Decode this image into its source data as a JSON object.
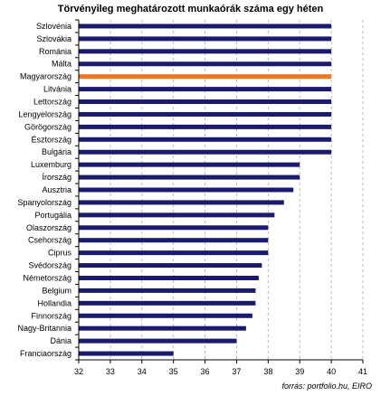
{
  "chart_data": {
    "type": "bar",
    "orientation": "horizontal",
    "title": "Törvényileg meghatározott munkaórák száma egy héten",
    "source": "forrás: portfolio.hu, EIRO",
    "categories": [
      "Szlovénia",
      "Szlovákia",
      "Románia",
      "Málta",
      "Magyarország",
      "Litvánia",
      "Lettország",
      "Lengyelország",
      "Görögország",
      "Észtország",
      "Bulgária",
      "Luxemburg",
      "Írország",
      "Ausztria",
      "Spanyolország",
      "Portugália",
      "Olaszország",
      "Csehország",
      "Ciprus",
      "Svédország",
      "Németország",
      "Belgium",
      "Hollandia",
      "Finnország",
      "Nagy-Britannia",
      "Dánia",
      "Franciaország"
    ],
    "values": [
      40,
      40,
      40,
      40,
      40,
      40,
      40,
      40,
      40,
      40,
      40,
      39,
      39,
      38.8,
      38.5,
      38.2,
      38,
      38,
      38,
      37.8,
      37.7,
      37.6,
      37.6,
      37.5,
      37.3,
      37,
      35
    ],
    "highlight": "Magyarország",
    "xlim": [
      32,
      41
    ],
    "xticks": [
      "32",
      "33",
      "34",
      "35",
      "36",
      "37",
      "38",
      "39",
      "40",
      "41"
    ],
    "grid": "vertical dashed",
    "colors": {
      "bar": "#1a1a6e",
      "highlight": "#f07820",
      "grid": "#bbbbbb"
    }
  }
}
